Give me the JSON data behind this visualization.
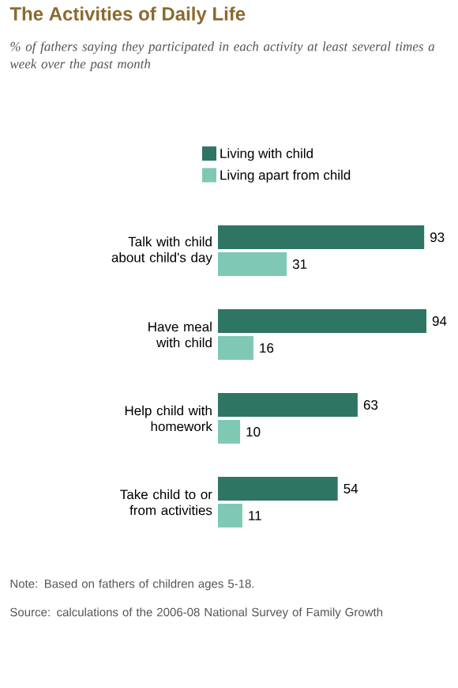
{
  "chart_data": {
    "type": "bar",
    "orientation": "horizontal",
    "title": "The Activities of Daily Life",
    "subtitle": "% of fathers saying they participated in each activity at least several times a week over the past month",
    "categories": [
      "Talk with child about child's day",
      "Have meal with child",
      "Help child with homework",
      "Take child to or from activities"
    ],
    "series": [
      {
        "name": "Living with child",
        "color": "#2e7563",
        "values": [
          93,
          94,
          63,
          54
        ]
      },
      {
        "name": "Living apart from child",
        "color": "#7fc9b4",
        "values": [
          31,
          16,
          10,
          11
        ]
      }
    ],
    "data_labels": true,
    "legend": "top",
    "annotations": [
      "Note: Based on fathers of children ages 5-18.",
      "Source: calculations of the 2006-08 National Survey of Family Growth"
    ]
  }
}
